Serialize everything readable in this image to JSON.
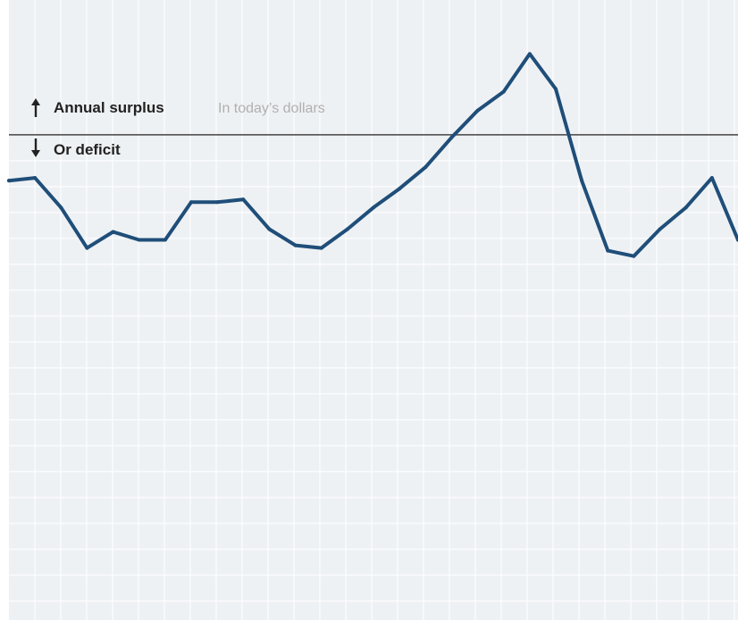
{
  "chart_data": {
    "type": "line",
    "title": "",
    "xlabel": "",
    "ylabel": "",
    "x": [
      0,
      1,
      2,
      3,
      4,
      5,
      6,
      7,
      8,
      9,
      10,
      11,
      12,
      13,
      14,
      15,
      16,
      17,
      18,
      19,
      20,
      21,
      22,
      23,
      24,
      25,
      26,
      27,
      28
    ],
    "series": [
      {
        "values": [
          -1.7,
          -1.6,
          -2.7,
          -4.2,
          -3.6,
          -3.9,
          -3.9,
          -2.5,
          -2.5,
          -2.4,
          -3.5,
          -4.1,
          -4.2,
          -3.5,
          -2.7,
          -2.0,
          -1.2,
          -0.1,
          0.9,
          1.6,
          3.0,
          1.7,
          -1.7,
          -4.3,
          -4.5,
          -3.5,
          -2.7,
          -1.6,
          -3.9
        ],
        "color": "#1f4e79"
      }
    ],
    "ylim": [
      -18,
      5
    ],
    "xlim": [
      0,
      28
    ],
    "zero_line": true,
    "grid": true,
    "annotations": {
      "surplus_label": "Annual surplus",
      "units_note": "In today’s dollars",
      "deficit_label": "Or deficit"
    },
    "colors": {
      "line": "#1f4e79",
      "zero_line": "#444444",
      "background": "#eef1f4",
      "grid": "#ffffff"
    }
  }
}
